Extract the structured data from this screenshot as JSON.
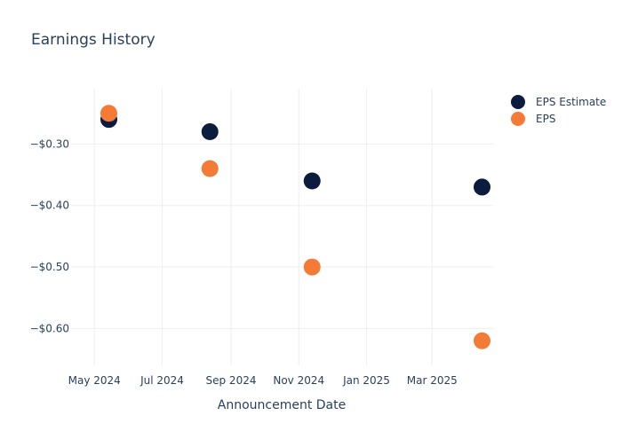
{
  "chart_data": {
    "type": "scatter",
    "title": "Earnings History",
    "xlabel": "Announcement Date",
    "ylabel": "",
    "x_ticks": [
      "May 2024",
      "Jul 2024",
      "Sep 2024",
      "Nov 2024",
      "Jan 2025",
      "Mar 2025"
    ],
    "x_tick_dates": [
      "2024-05-01",
      "2024-07-01",
      "2024-09-01",
      "2024-11-01",
      "2025-01-01",
      "2025-03-01"
    ],
    "y_ticks": [
      -0.3,
      -0.4,
      -0.5,
      -0.6
    ],
    "y_tick_labels": [
      "−$0.30",
      "−$0.40",
      "−$0.50",
      "−$0.60"
    ],
    "xlim": [
      "2024-04-10",
      "2025-04-25"
    ],
    "ylim": [
      -0.66,
      -0.21
    ],
    "grid": true,
    "legend_position": "top-right",
    "series": [
      {
        "name": "EPS Estimate",
        "color": "#0b1c3f",
        "points": [
          {
            "x": "2024-05-14",
            "y": -0.26
          },
          {
            "x": "2024-08-13",
            "y": -0.28
          },
          {
            "x": "2024-11-13",
            "y": -0.36
          },
          {
            "x": "2025-04-15",
            "y": -0.37
          }
        ]
      },
      {
        "name": "EPS",
        "color": "#f47b36",
        "points": [
          {
            "x": "2024-05-14",
            "y": -0.25
          },
          {
            "x": "2024-08-13",
            "y": -0.34
          },
          {
            "x": "2024-11-13",
            "y": -0.5
          },
          {
            "x": "2025-04-15",
            "y": -0.62
          }
        ]
      }
    ]
  }
}
